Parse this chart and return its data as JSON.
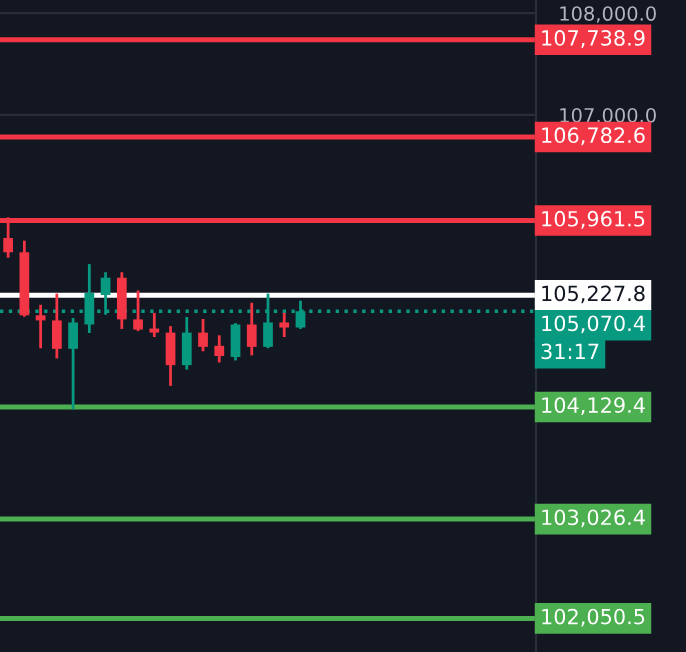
{
  "chart_data": {
    "type": "candlestick",
    "categories": [
      null,
      null,
      null,
      null,
      null,
      null,
      null,
      null,
      null,
      null,
      null,
      null,
      null,
      null,
      null,
      null,
      null,
      null,
      null,
      null,
      null,
      null,
      null,
      null,
      null,
      null,
      null,
      null,
      null,
      null,
      null,
      null,
      null
    ],
    "ohlc": [
      [
        105790,
        105980,
        105610,
        105650
      ],
      [
        105650,
        105750,
        105030,
        105030
      ],
      [
        105030,
        105120,
        104720,
        104980
      ],
      [
        104980,
        105230,
        104620,
        104700
      ],
      [
        104700,
        104990,
        104120,
        104960
      ],
      [
        104940,
        105520,
        104870,
        105250
      ],
      [
        105230,
        105440,
        105050,
        105400
      ],
      [
        105400,
        105440,
        104910,
        104990
      ],
      [
        104990,
        105260,
        104890,
        104890
      ],
      [
        104900,
        105040,
        104830,
        104860
      ],
      [
        104860,
        104910,
        104350,
        104540
      ],
      [
        104540,
        105000,
        104510,
        104860
      ],
      [
        104860,
        104980,
        104690,
        104720
      ],
      [
        104730,
        104820,
        104580,
        104630
      ],
      [
        104620,
        104940,
        104600,
        104940
      ],
      [
        104940,
        105140,
        104650,
        104720
      ],
      [
        104720,
        105230,
        104720,
        104960
      ],
      [
        104960,
        105040,
        104830,
        104910
      ],
      [
        104910,
        105160,
        104910,
        105070.4
      ],
      null,
      null,
      null,
      null,
      null,
      null,
      null,
      null,
      null,
      null,
      null,
      null,
      null,
      null
    ],
    "colors": [
      "#f23645",
      "#f23645",
      "#f23645",
      "#f23645",
      "#089981",
      "#089981",
      "#089981",
      "#f23645",
      "#f23645",
      "#f23645",
      "#f23645",
      "#089981",
      "#f23645",
      "#f23645",
      "#089981",
      "#f23645",
      "#089981",
      "#f23645",
      "#089981",
      null,
      null,
      null,
      null,
      null,
      null,
      null,
      null,
      null,
      null,
      null,
      null,
      null,
      null
    ],
    "ylim": [
      101720,
      108130
    ],
    "yticks": [
      {
        "value": 108000,
        "label": "108,000.0"
      },
      {
        "value": 107000,
        "label": "107,000.0"
      }
    ],
    "grid": "y",
    "ref_lines": [
      {
        "axis": "y",
        "value": 107738.9,
        "label": "107,738.9",
        "color": "#f23645"
      },
      {
        "axis": "y",
        "value": 106782.6,
        "label": "106,782.6",
        "color": "#f23645"
      },
      {
        "axis": "y",
        "value": 105961.5,
        "label": "105,961.5",
        "color": "#f23645"
      },
      {
        "axis": "y",
        "value": 105227.8,
        "label": "105,227.8",
        "color": "#ffffff"
      },
      {
        "axis": "y",
        "value": 105070.4,
        "label": "105,070.4",
        "color": "#089981",
        "line_style": "dotted"
      },
      {
        "axis": "y",
        "value": 104129.4,
        "label": "104,129.4",
        "color": "#4caf50"
      },
      {
        "axis": "y",
        "value": 103026.4,
        "label": "103,026.4",
        "color": "#4caf50"
      },
      {
        "axis": "y",
        "value": 102050.5,
        "label": "102,050.5",
        "color": "#4caf50"
      }
    ],
    "annotations": [
      "31:17"
    ]
  }
}
